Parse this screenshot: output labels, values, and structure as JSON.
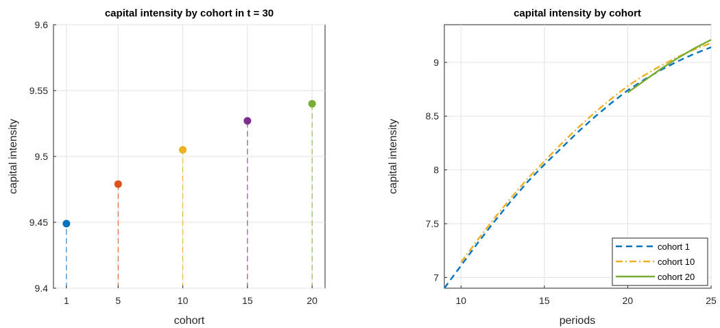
{
  "chart_data": [
    {
      "type": "scatter",
      "title": "capital intensity by cohort in t = 30",
      "xlabel": "cohort",
      "ylabel": "capital intensity",
      "xlim": [
        0,
        21
      ],
      "ylim": [
        9.4,
        9.6
      ],
      "xticks": [
        "1",
        "5",
        "10",
        "15",
        "20"
      ],
      "yticks": [
        "9.4",
        "9.45",
        "9.5",
        "9.55",
        "9.6"
      ],
      "grid": true,
      "x": [
        1,
        5,
        10,
        15,
        20
      ],
      "y": [
        9.449,
        9.479,
        9.505,
        9.527,
        9.54
      ],
      "colors": [
        "#0072BD",
        "#D95319",
        "#EDB120",
        "#7E2F8E",
        "#77AC30"
      ],
      "stems": "dashed"
    },
    {
      "type": "line",
      "title": "capital intensity by cohort",
      "xlabel": "periods",
      "ylabel": "capital intensity",
      "xlim": [
        9,
        25
      ],
      "ylim": [
        6.9,
        9.35
      ],
      "xticks": [
        "10",
        "15",
        "20",
        "25"
      ],
      "yticks": [
        "7",
        "7.5",
        "8",
        "8.5",
        "9"
      ],
      "grid": true,
      "legend_position": "bottom-right",
      "series": [
        {
          "name": "cohort 1",
          "color": "#0072BD",
          "style": "dashed",
          "x": [
            9,
            10,
            11,
            12,
            13,
            14,
            15,
            16,
            17,
            18,
            19,
            20,
            21,
            22,
            23,
            24,
            25
          ],
          "y": [
            6.9,
            7.11,
            7.32,
            7.52,
            7.71,
            7.89,
            8.05,
            8.2,
            8.35,
            8.49,
            8.62,
            8.74,
            8.84,
            8.93,
            9.01,
            9.08,
            9.14
          ]
        },
        {
          "name": "cohort 10",
          "color": "#EDB120",
          "style": "dashdot",
          "x": [
            10,
            11,
            12,
            13,
            14,
            15,
            16,
            17,
            18,
            19,
            20,
            21,
            22,
            23,
            24,
            25
          ],
          "y": [
            7.14,
            7.35,
            7.55,
            7.74,
            7.92,
            8.08,
            8.24,
            8.39,
            8.53,
            8.66,
            8.78,
            8.88,
            8.97,
            9.05,
            9.12,
            9.18
          ]
        },
        {
          "name": "cohort 20",
          "color": "#77AC30",
          "style": "solid",
          "x": [
            20,
            21,
            22,
            23,
            24,
            25
          ],
          "y": [
            8.72,
            8.83,
            8.94,
            9.04,
            9.13,
            9.21
          ]
        }
      ]
    }
  ]
}
